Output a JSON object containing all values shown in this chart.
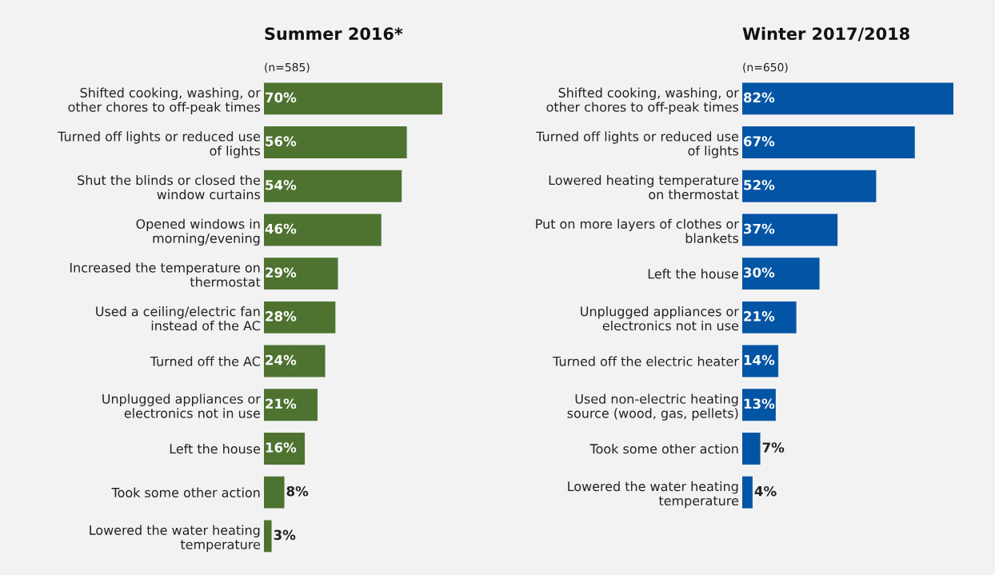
{
  "chart_data": [
    {
      "type": "bar",
      "orientation": "horizontal",
      "title": "Summer 2016*",
      "subtitle": "(n=585)",
      "color": "#4e7331",
      "categories": [
        "Shifted cooking, washing, or\nother chores to off-peak times",
        "Turned off lights or reduced use\nof lights",
        "Shut the blinds or closed the\nwindow curtains",
        "Opened windows in\nmorning/evening",
        "Increased the temperature on\nthermostat",
        "Used a ceiling/electric fan\ninstead of the AC",
        "Turned off the AC",
        "Unplugged appliances or\nelectronics not in use",
        "Left the house",
        "Took some other action",
        "Lowered the water heating\ntemperature"
      ],
      "values": [
        70,
        56,
        54,
        46,
        29,
        28,
        24,
        21,
        16,
        8,
        3
      ],
      "value_labels": [
        "70%",
        "56%",
        "54%",
        "46%",
        "29%",
        "28%",
        "24%",
        "21%",
        "16%",
        "8%",
        "3%"
      ]
    },
    {
      "type": "bar",
      "orientation": "horizontal",
      "title": "Winter 2017/2018",
      "subtitle": "(n=650)",
      "color": "#0255a5",
      "categories": [
        "Shifted cooking, washing, or\nother chores to off-peak times",
        "Turned off lights or reduced use\nof lights",
        "Lowered heating temperature\non thermostat",
        "Put on more layers of clothes or\nblankets",
        "Left the house",
        "Unplugged appliances or\nelectronics not in use",
        "Turned off the electric heater",
        "Used non-electric heating\nsource (wood, gas, pellets)",
        "Took some other action",
        "Lowered the water heating\ntemperature"
      ],
      "values": [
        82,
        67,
        52,
        37,
        30,
        21,
        14,
        13,
        7,
        4
      ],
      "value_labels": [
        "82%",
        "67%",
        "52%",
        "37%",
        "30%",
        "21%",
        "14%",
        "13%",
        "7%",
        "4%"
      ]
    }
  ]
}
